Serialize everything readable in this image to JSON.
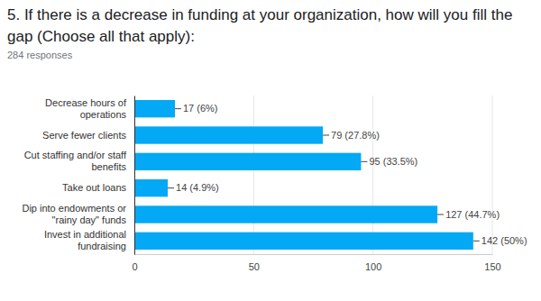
{
  "chart_data": {
    "type": "bar",
    "orientation": "horizontal",
    "title": "5. If there is a decrease in funding at your organization, how will you fill the gap (Choose all that apply):",
    "subtitle": "284 responses",
    "categories": [
      "Decrease hours of operations",
      "Serve fewer clients",
      "Cut staffing and/or staff benefits",
      "Take out loans",
      "Dip into endowments or \"rainy day\" funds",
      "Invest in additional fundraising"
    ],
    "values": [
      17,
      79,
      95,
      14,
      127,
      142
    ],
    "value_labels": [
      "17 (6%)",
      "79 (27.8%)",
      "95 (33.5%)",
      "14 (4.9%)",
      "127 (44.7%)",
      "142 (50%)"
    ],
    "color": "#03a9f4",
    "xlim": [
      0,
      150
    ],
    "xticks": [
      0,
      50,
      100,
      150
    ],
    "grid": true,
    "data_labels": true
  }
}
